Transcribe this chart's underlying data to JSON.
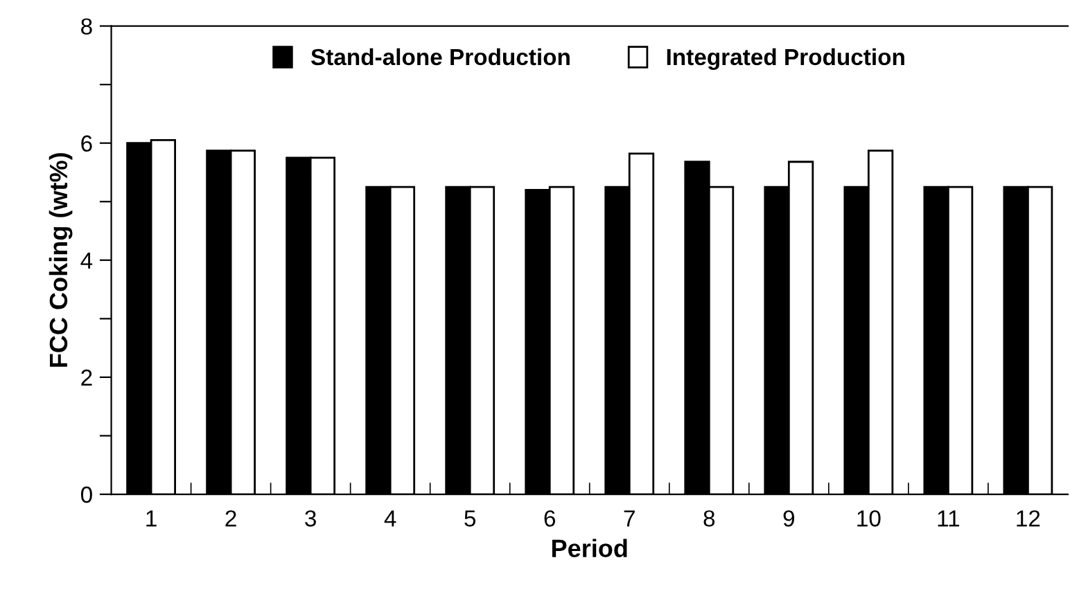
{
  "chart_data": {
    "type": "bar",
    "xlabel": "Period",
    "ylabel": "FCC Coking (wt%)",
    "categories": [
      "1",
      "2",
      "3",
      "4",
      "5",
      "6",
      "7",
      "8",
      "9",
      "10",
      "11",
      "12"
    ],
    "series": [
      {
        "name": "Stand-alone Production",
        "color": "#000000",
        "values": [
          6.0,
          5.87,
          5.75,
          5.25,
          5.25,
          5.2,
          5.25,
          5.68,
          5.25,
          5.25,
          5.25,
          5.25
        ]
      },
      {
        "name": "Integrated Production",
        "color": "#ffffff",
        "values": [
          6.05,
          5.87,
          5.75,
          5.25,
          5.25,
          5.25,
          5.82,
          5.25,
          5.68,
          5.87,
          5.25,
          5.25
        ]
      }
    ],
    "ylim": [
      0,
      8
    ],
    "yticks": [
      0,
      {
        "value": 1,
        "label": null
      },
      2,
      {
        "value": 3,
        "label": null
      },
      4,
      {
        "value": 5,
        "label": null
      },
      6,
      {
        "value": 7,
        "label": null
      },
      8
    ],
    "grid": false,
    "legend": "top"
  }
}
